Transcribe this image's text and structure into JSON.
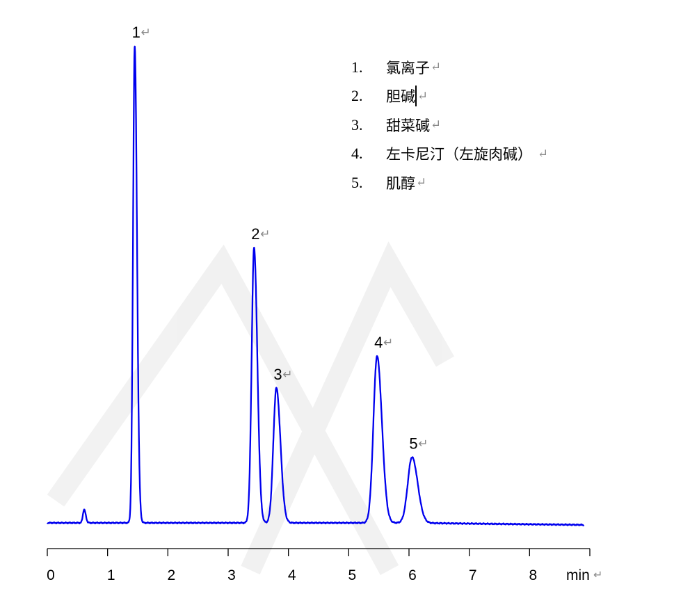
{
  "chart_data": {
    "type": "line",
    "title": "",
    "xlabel": "",
    "x_unit_label": "min",
    "ylabel": "",
    "xlim": [
      0,
      9
    ],
    "x_ticks": [
      "0",
      "1",
      "2",
      "3",
      "4",
      "5",
      "6",
      "7",
      "8"
    ],
    "y_axis_shown": false,
    "grid": false,
    "line_color": "#0000ee",
    "return_mark": "↵",
    "peaks": [
      {
        "label": "",
        "retention_time": 0.61,
        "relative_height": 2.8,
        "width_min": 0.02
      },
      {
        "label": "1",
        "retention_time": 1.45,
        "relative_height": 100,
        "width_min": 0.028
      },
      {
        "label": "2",
        "retention_time": 3.43,
        "relative_height": 57.7,
        "width_min": 0.04
      },
      {
        "label": "3",
        "retention_time": 3.8,
        "relative_height": 28.3,
        "width_min": 0.05
      },
      {
        "label": "4",
        "retention_time": 5.47,
        "relative_height": 35.0,
        "width_min": 0.06
      },
      {
        "label": "5",
        "retention_time": 6.05,
        "relative_height": 13.8,
        "width_min": 0.07
      }
    ],
    "legend": {
      "placement": "top-right",
      "items": [
        {
          "num": "1.",
          "name": "氯离子"
        },
        {
          "num": "2.",
          "name": "胆碱"
        },
        {
          "num": "3.",
          "name": "甜菜碱"
        },
        {
          "num": "4.",
          "name": "左卡尼汀（左旋肉碱）"
        },
        {
          "num": "5.",
          "name": "肌醇"
        }
      ]
    }
  }
}
